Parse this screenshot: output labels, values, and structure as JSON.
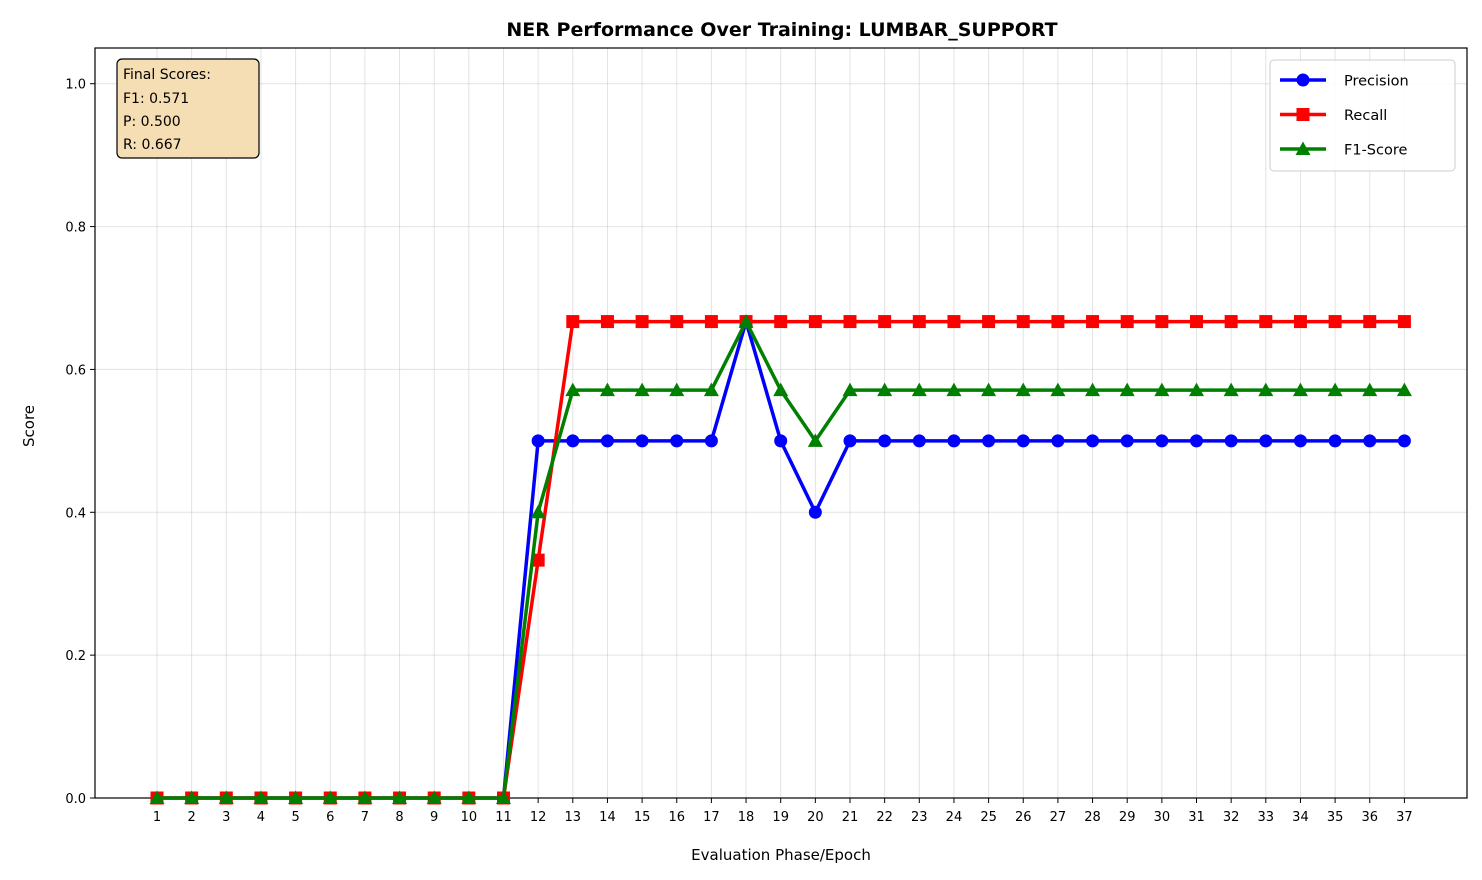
{
  "chart_data": {
    "type": "line",
    "title": "NER Performance Over Training: LUMBAR_SUPPORT",
    "xlabel": "Evaluation Phase/Epoch",
    "ylabel": "Score",
    "ylim": [
      0,
      1.05
    ],
    "yticks": [
      "0.0",
      "0.2",
      "0.4",
      "0.6",
      "0.8",
      "1.0"
    ],
    "grid": true,
    "legend_position": "top-right",
    "x": [
      1,
      2,
      3,
      4,
      5,
      6,
      7,
      8,
      9,
      10,
      11,
      12,
      13,
      14,
      15,
      16,
      17,
      18,
      19,
      20,
      21,
      22,
      23,
      24,
      25,
      26,
      27,
      28,
      29,
      30,
      31,
      32,
      33,
      34,
      35,
      36,
      37
    ],
    "series": [
      {
        "name": "Precision",
        "color": "#0000ff",
        "marker": "circle",
        "values": [
          0,
          0,
          0,
          0,
          0,
          0,
          0,
          0,
          0,
          0,
          0,
          0.5,
          0.5,
          0.5,
          0.5,
          0.5,
          0.5,
          0.667,
          0.5,
          0.4,
          0.5,
          0.5,
          0.5,
          0.5,
          0.5,
          0.5,
          0.5,
          0.5,
          0.5,
          0.5,
          0.5,
          0.5,
          0.5,
          0.5,
          0.5,
          0.5,
          0.5
        ]
      },
      {
        "name": "Recall",
        "color": "#ff0000",
        "marker": "square",
        "values": [
          0,
          0,
          0,
          0,
          0,
          0,
          0,
          0,
          0,
          0,
          0,
          0.333,
          0.667,
          0.667,
          0.667,
          0.667,
          0.667,
          0.667,
          0.667,
          0.667,
          0.667,
          0.667,
          0.667,
          0.667,
          0.667,
          0.667,
          0.667,
          0.667,
          0.667,
          0.667,
          0.667,
          0.667,
          0.667,
          0.667,
          0.667,
          0.667,
          0.667
        ]
      },
      {
        "name": "F1-Score",
        "color": "#008000",
        "marker": "triangle",
        "values": [
          0,
          0,
          0,
          0,
          0,
          0,
          0,
          0,
          0,
          0,
          0,
          0.4,
          0.571,
          0.571,
          0.571,
          0.571,
          0.571,
          0.667,
          0.571,
          0.5,
          0.571,
          0.571,
          0.571,
          0.571,
          0.571,
          0.571,
          0.571,
          0.571,
          0.571,
          0.571,
          0.571,
          0.571,
          0.571,
          0.571,
          0.571,
          0.571,
          0.571
        ]
      }
    ],
    "annotation": {
      "lines": [
        "Final Scores:",
        "F1: 0.571",
        "P: 0.500",
        "R: 0.667"
      ],
      "background": "#f5deb3"
    }
  }
}
